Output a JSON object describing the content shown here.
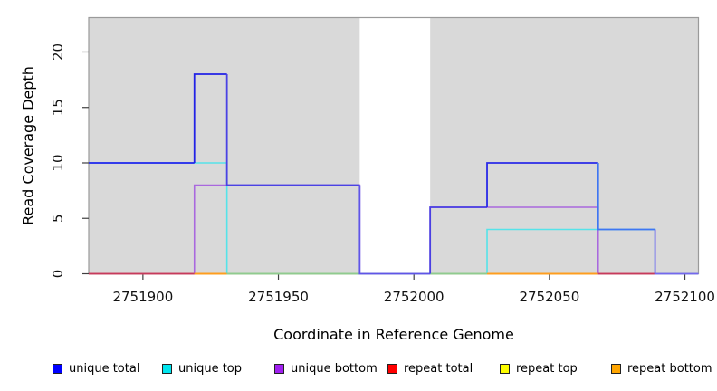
{
  "figure": {
    "background": "#ffffff"
  },
  "chart_data": {
    "type": "line",
    "subtype": "step-coverage",
    "title": "",
    "xlabel": "Coordinate in Reference Genome",
    "ylabel": "Read Coverage Depth",
    "xlim": [
      2751880,
      2752105
    ],
    "ylim": [
      0,
      23.1
    ],
    "xticks": [
      2751900,
      2751950,
      2752000,
      2752050,
      2752100
    ],
    "yticks": [
      0,
      5,
      10,
      15,
      20
    ],
    "grid": false,
    "legend_position": "bottom",
    "plot_bg": "#d9d9d9",
    "border_color": "#9a9a9a",
    "tick_color": "#404040",
    "tick_label_color": "#111111",
    "gap_region": {
      "x1": 2751980,
      "x2": 2752006,
      "fill": "#ffffff"
    },
    "series": [
      {
        "name": "unique total",
        "legend_color": "#0000ff",
        "steps": [
          {
            "x": 2751880,
            "level": 10,
            "color": "#2525ec"
          },
          {
            "x": 2751919,
            "level": 18,
            "color": "#2222e6"
          },
          {
            "x": 2751931,
            "level": 8,
            "color": "#4a42e4"
          },
          {
            "x": 2751980,
            "level": 0,
            "color": "#6055e8"
          },
          {
            "x": 2752006,
            "level": 6,
            "color": "#4a3fe2"
          },
          {
            "x": 2752027,
            "level": 10,
            "color": "#2a2ae8"
          },
          {
            "x": 2752068,
            "level": 4,
            "color": "#3f76f2"
          },
          {
            "x": 2752089,
            "level": 0,
            "color": "#7468ee"
          }
        ],
        "end": 2752105
      },
      {
        "name": "unique top",
        "legend_color": "#00e5ee",
        "color": "#55e3e9",
        "steps": [
          {
            "x": 2751880,
            "level": 10
          },
          {
            "x": 2751931,
            "level": 0
          },
          {
            "x": 2752027,
            "level": 4
          },
          {
            "x": 2752089,
            "level": 0
          }
        ],
        "end": 2752105
      },
      {
        "name": "unique bottom",
        "legend_color": "#a020f0",
        "color": "#a968de",
        "steps": [
          {
            "x": 2751880,
            "level": 0
          },
          {
            "x": 2751919,
            "level": 8
          },
          {
            "x": 2751980,
            "level": 0
          },
          {
            "x": 2752006,
            "level": 6
          },
          {
            "x": 2752068,
            "level": 0
          }
        ],
        "end": 2752105
      },
      {
        "name": "repeat total",
        "legend_color": "#ff0000",
        "color": "#dd2222",
        "steps": [
          {
            "x": 2751880,
            "level": 0
          }
        ],
        "end": 2752105
      },
      {
        "name": "repeat top",
        "legend_color": "#ffff00",
        "color": "#eeee00",
        "steps": [
          {
            "x": 2751880,
            "level": 0
          }
        ],
        "end": 2752105
      },
      {
        "name": "repeat bottom",
        "legend_color": "#ffa500",
        "color": "#ff9d1e",
        "steps": [
          {
            "x": 2751880,
            "level": 0
          }
        ],
        "end": 2752105
      }
    ],
    "zero_overlap_segments": [
      {
        "x1": 2751880,
        "x2": 2751919,
        "color": "#c73a5c"
      },
      {
        "x1": 2751919,
        "x2": 2751931,
        "color": "#ff9d1e"
      },
      {
        "x1": 2751931,
        "x2": 2751980,
        "color": "#8fcb8f"
      },
      {
        "x1": 2752006,
        "x2": 2752027,
        "color": "#8fcb8f"
      },
      {
        "x1": 2752027,
        "x2": 2752068,
        "color": "#ff9d1e"
      },
      {
        "x1": 2752068,
        "x2": 2752089,
        "color": "#c73a5c"
      }
    ]
  }
}
